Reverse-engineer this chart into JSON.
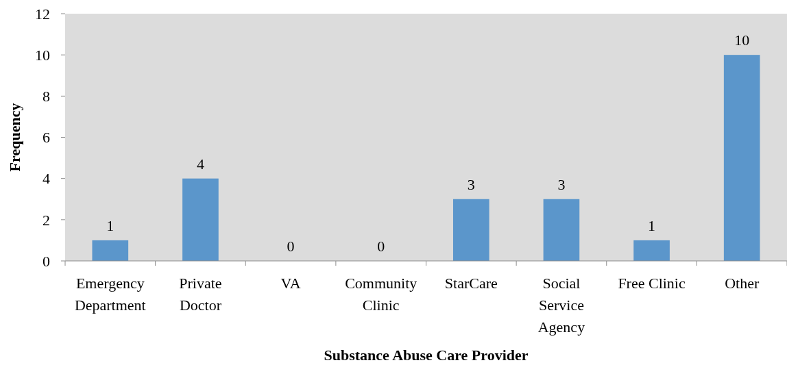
{
  "chart_data": {
    "type": "bar",
    "xlabel": "Substance Abuse Care Provider",
    "ylabel": "Frequency",
    "categories": [
      "Emergency Department",
      "Private Doctor",
      "VA",
      "Community Clinic",
      "StarCare",
      "Social Service Agency",
      "Free Clinic",
      "Other"
    ],
    "values": [
      1,
      4,
      0,
      0,
      3,
      3,
      1,
      10
    ],
    "color": "#5b96cb",
    "ylim": [
      0,
      12
    ],
    "yticks": [
      0,
      2,
      4,
      6,
      8,
      10,
      12
    ],
    "grid": false,
    "data_labels": true
  }
}
